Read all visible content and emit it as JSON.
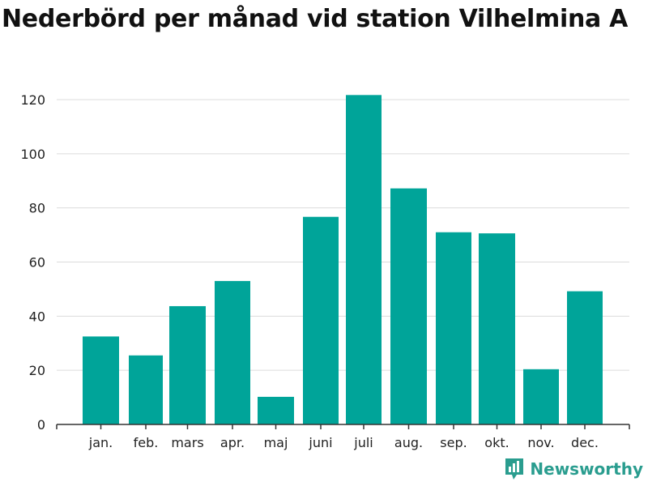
{
  "chart_data": {
    "type": "bar",
    "title": "Nederbörd per månad vid station Vilhelmina A",
    "xlabel": "",
    "ylabel": "",
    "categories": [
      "jan.",
      "feb.",
      "mars",
      "apr.",
      "maj",
      "juni",
      "juli",
      "aug.",
      "sep.",
      "okt.",
      "nov.",
      "dec."
    ],
    "values": [
      32.5,
      25.5,
      43.7,
      53.0,
      10.2,
      76.7,
      121.7,
      87.2,
      71.0,
      70.6,
      20.4,
      49.2
    ],
    "ylim": [
      0,
      120
    ],
    "yticks": [
      0,
      20,
      40,
      60,
      80,
      100,
      120
    ],
    "grid": true,
    "bar_color": "#00a499"
  },
  "brand": {
    "name": "Newsworthy",
    "icon": "newsworthy-logo-icon",
    "color": "#2a9d8f"
  }
}
